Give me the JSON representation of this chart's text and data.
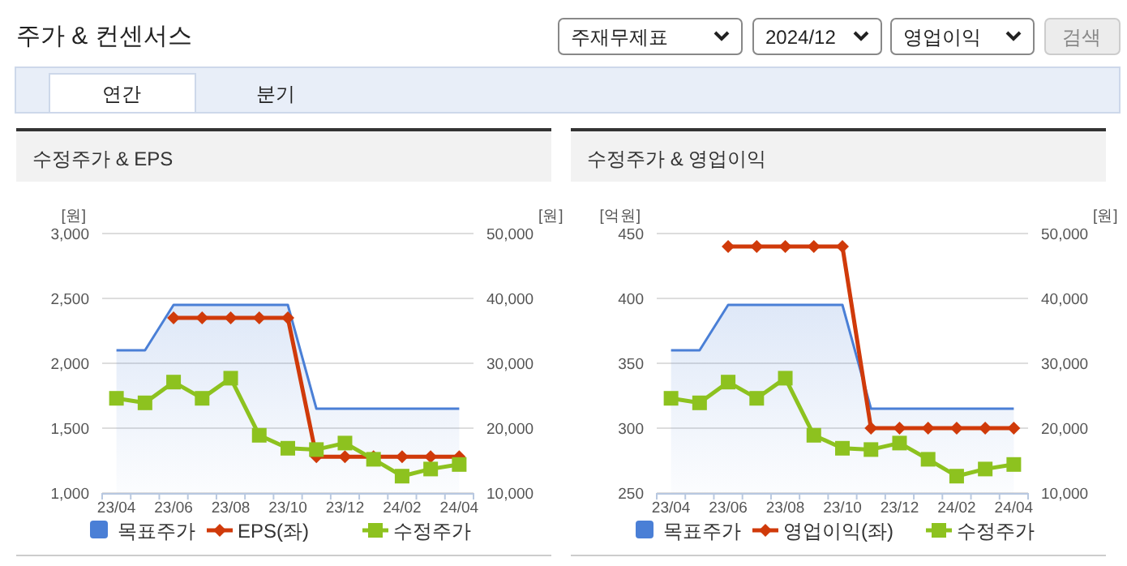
{
  "chart_data": [
    {
      "type": "other",
      "title": "주가 & 컨센서스",
      "annotations": [
        "주재무제표",
        "2024/12",
        "영업이익",
        "검색",
        "연간",
        "분기"
      ]
    },
    {
      "type": "line",
      "title": "수정주가 & EPS",
      "ylabel": "[원]",
      "y2label": "[원]",
      "categories": [
        "23/04",
        null,
        "23/06",
        null,
        "23/08",
        null,
        "23/10",
        null,
        "23/12",
        null,
        "24/02",
        null,
        "24/04"
      ],
      "ylim": [
        1000,
        3000
      ],
      "yticks": [
        {
          "value": 1000,
          "label": "1,000"
        },
        {
          "value": 1500,
          "label": "1,500"
        },
        {
          "value": 2000,
          "label": "2,000"
        },
        {
          "value": 2500,
          "label": "2,500"
        },
        {
          "value": 3000,
          "label": "3,000"
        }
      ],
      "y2lim": [
        10000,
        50000
      ],
      "y2ticks": [
        {
          "value": 10000,
          "label": "10,000"
        },
        {
          "value": 20000,
          "label": "20,000"
        },
        {
          "value": 30000,
          "label": "30,000"
        },
        {
          "value": 40000,
          "label": "40,000"
        },
        {
          "value": 50000,
          "label": "50,000"
        }
      ],
      "grid": "y",
      "legend": "bottom",
      "series": [
        {
          "name": "목표주가",
          "type": "area",
          "axis": "y2",
          "color": "#4a7fd6",
          "values": [
            32000,
            32000,
            39000,
            39000,
            39000,
            39000,
            39000,
            23000,
            23000,
            23000,
            23000,
            23000,
            23000
          ]
        },
        {
          "name": "EPS(좌)",
          "type": "line",
          "color": "#d03a0a",
          "marker": "diamond",
          "values": [
            null,
            null,
            2350,
            2350,
            2350,
            2350,
            2350,
            1280,
            1280,
            1280,
            1280,
            1280,
            1280
          ]
        },
        {
          "name": "수정주가",
          "type": "line",
          "axis": "y2",
          "color": "#8dc21f",
          "marker": "square",
          "values": [
            24600,
            23900,
            27100,
            24600,
            27700,
            18900,
            16900,
            16700,
            17700,
            15200,
            12600,
            13700,
            14400
          ]
        }
      ]
    },
    {
      "type": "line",
      "title": "수정주가 & 영업이익",
      "ylabel": "[억원]",
      "y2label": "[원]",
      "categories": [
        "23/04",
        null,
        "23/06",
        null,
        "23/08",
        null,
        "23/10",
        null,
        "23/12",
        null,
        "24/02",
        null,
        "24/04"
      ],
      "ylim": [
        250,
        450
      ],
      "yticks": [
        250,
        300,
        350,
        400,
        450
      ],
      "y2lim": [
        10000,
        50000
      ],
      "y2ticks": [
        {
          "value": 10000,
          "label": "10,000"
        },
        {
          "value": 20000,
          "label": "20,000"
        },
        {
          "value": 30000,
          "label": "30,000"
        },
        {
          "value": 40000,
          "label": "40,000"
        },
        {
          "value": 50000,
          "label": "50,000"
        }
      ],
      "grid": "y",
      "legend": "bottom",
      "series": [
        {
          "name": "목표주가",
          "type": "area",
          "axis": "y2",
          "color": "#4a7fd6",
          "values": [
            32000,
            32000,
            39000,
            39000,
            39000,
            39000,
            39000,
            23000,
            23000,
            23000,
            23000,
            23000,
            23000
          ]
        },
        {
          "name": "영업이익(좌)",
          "type": "line",
          "color": "#d03a0a",
          "marker": "diamond",
          "values": [
            null,
            null,
            440,
            440,
            440,
            440,
            440,
            300,
            300,
            300,
            300,
            300,
            300
          ]
        },
        {
          "name": "수정주가",
          "type": "line",
          "axis": "y2",
          "color": "#8dc21f",
          "marker": "square",
          "values": [
            24600,
            23900,
            27100,
            24600,
            27700,
            18900,
            16900,
            16700,
            17700,
            15200,
            12600,
            13700,
            14400
          ]
        }
      ]
    }
  ]
}
